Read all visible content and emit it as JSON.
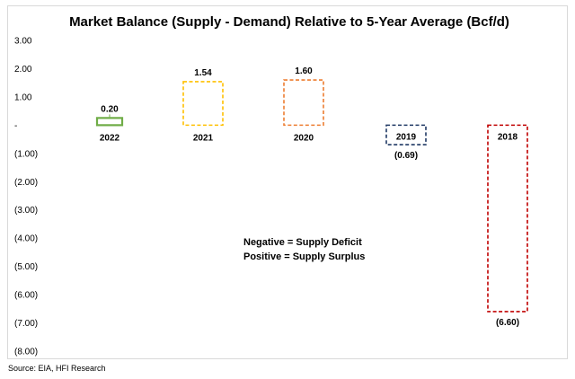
{
  "chart_data": {
    "type": "bar",
    "title": "Market Balance (Supply - Demand) Relative to 5-Year Average (Bcf/d)",
    "xlabel": "",
    "ylabel": "",
    "categories": [
      "2022",
      "2021",
      "2020",
      "2019",
      "2018"
    ],
    "values": [
      0.2,
      1.54,
      1.6,
      -0.69,
      -6.6
    ],
    "value_labels": [
      "0.20",
      "1.54",
      "1.60",
      "(0.69)",
      "(6.60)"
    ],
    "colors": [
      "#70ad47",
      "#ffc000",
      "#ed7d31",
      "#1f3864",
      "#c00000"
    ],
    "styles": [
      "solid",
      "dashed",
      "dashed",
      "dashed",
      "dashed"
    ],
    "ylim": [
      -8,
      3
    ],
    "y_ticks": [
      3,
      2,
      1,
      0,
      -1,
      -2,
      -3,
      -4,
      -5,
      -6,
      -7,
      -8
    ],
    "y_tick_labels": [
      "3.00",
      "2.00",
      "1.00",
      "-",
      "(1.00)",
      "(2.00)",
      "(3.00)",
      "(4.00)",
      "(5.00)",
      "(6.00)",
      "(7.00)",
      "(8.00)"
    ],
    "grid": false,
    "annotations": [
      "Negative = Supply Deficit",
      "Positive = Supply Surplus"
    ]
  },
  "source": "Source: EIA, HFI Research"
}
